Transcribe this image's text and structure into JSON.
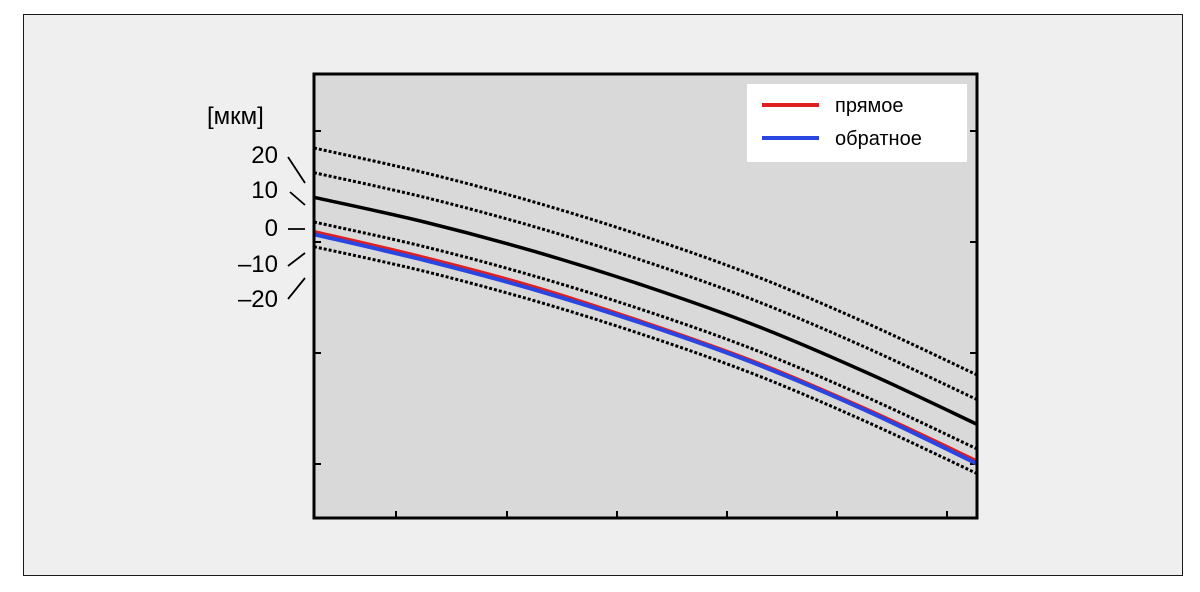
{
  "chart_data": {
    "type": "line",
    "ylabel": "[мкм]",
    "y_ticks": [
      {
        "label": "20",
        "value": 20
      },
      {
        "label": "10",
        "value": 10
      },
      {
        "label": "0",
        "value": 0
      },
      {
        "label": "–10",
        "value": -10
      },
      {
        "label": "–20",
        "value": -20
      }
    ],
    "x": [
      0,
      1,
      2,
      3,
      4,
      5,
      6
    ],
    "reference_curves": [
      {
        "style": "solid",
        "color": "#000000",
        "values": [
          0,
          -10,
          -22,
          -36,
          -52,
          -71,
          -92
        ]
      },
      {
        "style": "dotted",
        "color": "#000000",
        "values": [
          10,
          0,
          -12,
          -26,
          -42,
          -61,
          -82
        ]
      },
      {
        "style": "dotted",
        "color": "#000000",
        "values": [
          20,
          10,
          -2,
          -16,
          -32,
          -51,
          -72
        ]
      },
      {
        "style": "dotted",
        "color": "#000000",
        "values": [
          -10,
          -20,
          -32,
          -46,
          -62,
          -81,
          -102
        ]
      },
      {
        "style": "dotted",
        "color": "#000000",
        "values": [
          -20,
          -30,
          -42,
          -56,
          -72,
          -91,
          -112
        ]
      }
    ],
    "series": [
      {
        "name": "прямое",
        "color": "#e02020",
        "values": [
          -14,
          -24.5,
          -36.5,
          -51,
          -67,
          -86,
          -107
        ]
      },
      {
        "name": "обратное",
        "color": "#2b45e0",
        "values": [
          -15,
          -25.5,
          -37.5,
          -51.5,
          -67.5,
          -86.5,
          -108
        ]
      }
    ],
    "ylim": [
      -130,
      50
    ],
    "legend": {
      "position": "top-right"
    },
    "grid": false,
    "plot_background": "#d9d9d9"
  }
}
